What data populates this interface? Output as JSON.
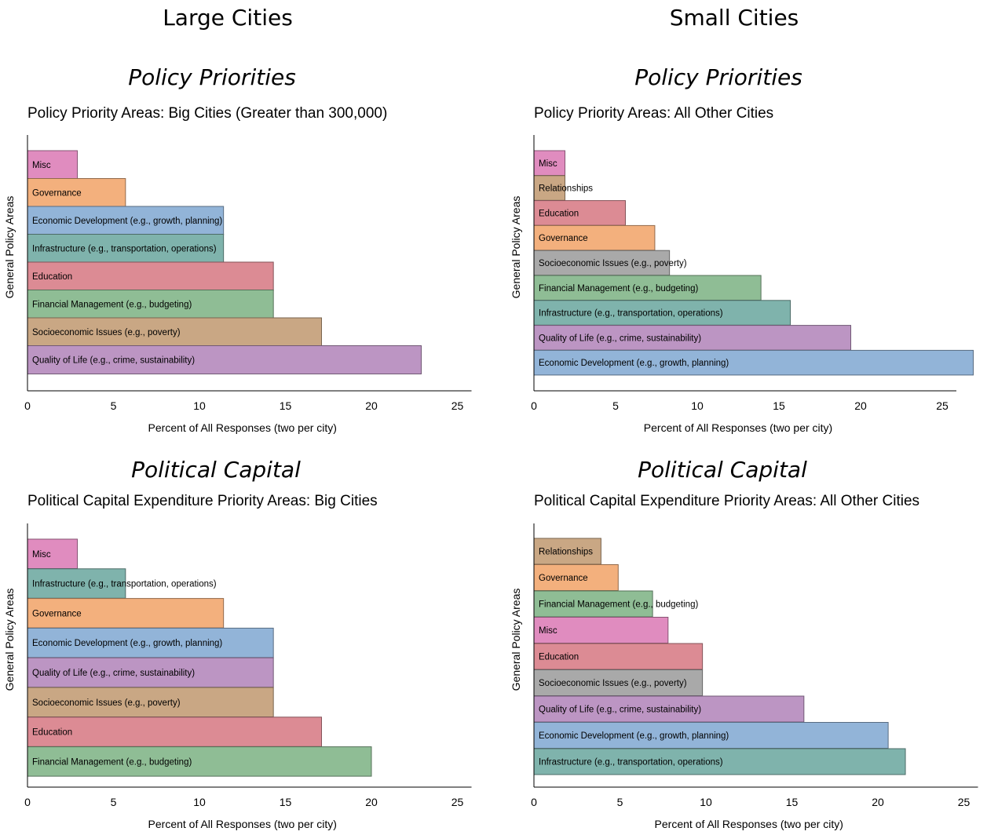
{
  "column_titles": [
    "Large Cities",
    "Small Cities"
  ],
  "section_titles": {
    "top": "Policy Priorities",
    "bottom": "Political Capital"
  },
  "colors": {
    "Misc": "#e08cbf",
    "Governance": "#f3b07d",
    "Economic Development": "#92b4d8",
    "Infrastructure": "#7fb3ac",
    "Education": "#dc8b94",
    "Financial Management": "#8fbd95",
    "Socioeconomic Issues": "#c9a784",
    "Socioeconomic Issues (gray)": "#a9a9a9",
    "Quality of Life": "#bc95c3",
    "Relationships": "#c9a784"
  },
  "chart_data": [
    {
      "type": "bar",
      "orientation": "horizontal",
      "section": "Policy Priorities",
      "title": "Policy Priority Areas: Big Cities (Greater than 300,000)",
      "xlabel": "Percent of All Responses (two per city)",
      "ylabel": "General Policy Areas",
      "xlim": [
        0,
        25
      ],
      "xticks": [
        0,
        5,
        10,
        15,
        20,
        25
      ],
      "categories": [
        "Misc",
        "Governance",
        "Economic Development (e.g., growth, planning)",
        "Infrastructure (e.g., transportation, operations)",
        "Education",
        "Financial Management (e.g., budgeting)",
        "Socioeconomic Issues (e.g., poverty)",
        "Quality of Life (e.g., crime, sustainability)"
      ],
      "values": [
        2.9,
        5.7,
        11.4,
        11.4,
        14.3,
        14.3,
        17.1,
        22.9
      ],
      "colors": [
        "#e08cbf",
        "#f3b07d",
        "#92b4d8",
        "#7fb3ac",
        "#dc8b94",
        "#8fbd95",
        "#c9a784",
        "#bc95c3"
      ],
      "grid": false
    },
    {
      "type": "bar",
      "orientation": "horizontal",
      "section": "Policy Priorities",
      "title": "Policy Priority Areas: All Other Cities",
      "xlabel": "Percent of All Responses (two per city)",
      "ylabel": "General Policy Areas",
      "xlim": [
        0,
        25
      ],
      "xticks": [
        0,
        5,
        10,
        15,
        20,
        25
      ],
      "categories": [
        "Misc",
        "Relationships",
        "Education",
        "Governance",
        "Socioeconomic Issues (e.g., poverty)",
        "Financial Management (e.g., budgeting)",
        "Infrastructure (e.g., transportation, operations)",
        "Quality of Life (e.g., crime, sustainability)",
        "Economic Development (e.g., growth, planning)"
      ],
      "values": [
        1.9,
        1.9,
        5.6,
        7.4,
        8.3,
        13.9,
        15.7,
        19.4,
        26.9
      ],
      "colors": [
        "#e08cbf",
        "#c9a784",
        "#dc8b94",
        "#f3b07d",
        "#a9a9a9",
        "#8fbd95",
        "#7fb3ac",
        "#bc95c3",
        "#92b4d8"
      ],
      "grid": false
    },
    {
      "type": "bar",
      "orientation": "horizontal",
      "section": "Political Capital",
      "title": "Political Capital Expenditure Priority Areas: Big Cities",
      "xlabel": "Percent of All Responses (two per city)",
      "ylabel": "General Policy Areas",
      "xlim": [
        0,
        25
      ],
      "xticks": [
        0,
        5,
        10,
        15,
        20,
        25
      ],
      "categories": [
        "Misc",
        "Infrastructure (e.g., transportation, operations)",
        "Governance",
        "Economic Development (e.g., growth, planning)",
        "Quality of Life (e.g., crime, sustainability)",
        "Socioeconomic Issues (e.g., poverty)",
        "Education",
        "Financial Management (e.g., budgeting)"
      ],
      "values": [
        2.9,
        5.7,
        11.4,
        14.3,
        14.3,
        14.3,
        17.1,
        20.0
      ],
      "colors": [
        "#e08cbf",
        "#7fb3ac",
        "#f3b07d",
        "#92b4d8",
        "#bc95c3",
        "#c9a784",
        "#dc8b94",
        "#8fbd95"
      ],
      "grid": false
    },
    {
      "type": "bar",
      "orientation": "horizontal",
      "section": "Political Capital",
      "title": "Political Capital Expenditure Priority Areas: All Other Cities",
      "xlabel": "Percent of All Responses (two per city)",
      "ylabel": "General Policy Areas",
      "xlim": [
        0,
        25
      ],
      "xticks": [
        0,
        5,
        10,
        15,
        20,
        25
      ],
      "categories": [
        "Relationships",
        "Governance",
        "Financial Management (e.g., budgeting)",
        "Misc",
        "Education",
        "Socioeconomic Issues (e.g., poverty)",
        "Quality of Life (e.g., crime, sustainability)",
        "Economic Development (e.g., growth, planning)",
        "Infrastructure (e.g., transportation, operations)"
      ],
      "values": [
        3.9,
        4.9,
        6.9,
        7.8,
        9.8,
        9.8,
        15.7,
        20.6,
        21.6
      ],
      "colors": [
        "#c9a784",
        "#f3b07d",
        "#8fbd95",
        "#e08cbf",
        "#dc8b94",
        "#a9a9a9",
        "#bc95c3",
        "#92b4d8",
        "#7fb3ac"
      ],
      "grid": false
    }
  ]
}
